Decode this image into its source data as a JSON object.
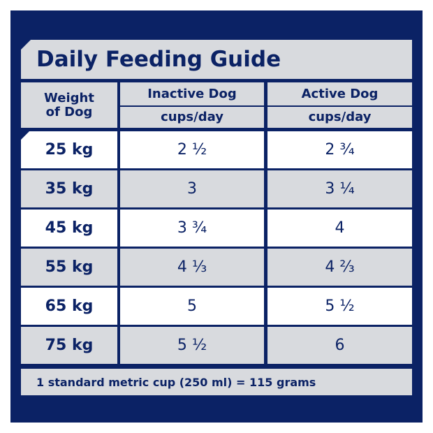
{
  "header": {
    "title": "Daily Feeding Guide"
  },
  "table": {
    "columns": [
      {
        "name": "Weight of Dog"
      },
      {
        "name": "Inactive Dog",
        "unit": "cups/day"
      },
      {
        "name": "Active Dog",
        "unit": "cups/day"
      }
    ],
    "rows": [
      [
        "25 kg",
        "2 ½",
        "2 ¾"
      ],
      [
        "35 kg",
        "3",
        "3 ¼"
      ],
      [
        "45 kg",
        "3 ¾",
        "4"
      ],
      [
        "55 kg",
        "4 ⅓",
        "4 ⅔"
      ],
      [
        "65 kg",
        "5",
        "5 ½"
      ],
      [
        "75 kg",
        "5 ½",
        "6"
      ]
    ]
  },
  "footer": {
    "note": "1 standard metric cup (250 ml) = 115 grams"
  }
}
